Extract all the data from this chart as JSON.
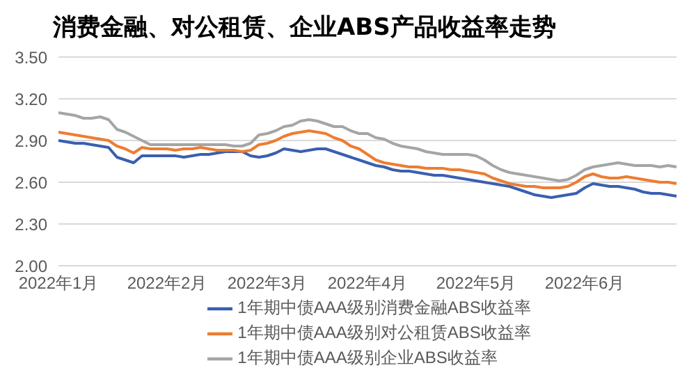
{
  "chart_data": {
    "type": "line",
    "title": "消费金融、对公租赁、企业ABS产品收益率走势",
    "categories": [
      "2022年1月",
      null,
      null,
      null,
      null,
      null,
      null,
      null,
      null,
      null,
      null,
      null,
      null,
      "2022年2月",
      null,
      null,
      null,
      null,
      null,
      null,
      null,
      null,
      null,
      null,
      null,
      "2022年3月",
      null,
      null,
      null,
      null,
      null,
      null,
      null,
      null,
      null,
      null,
      null,
      "2022年4月",
      null,
      null,
      null,
      null,
      null,
      null,
      null,
      null,
      null,
      null,
      null,
      null,
      "2022年5月",
      null,
      null,
      null,
      null,
      null,
      null,
      null,
      null,
      null,
      null,
      null,
      null,
      "2022年6月",
      null,
      null,
      null,
      null,
      null,
      null,
      null,
      null,
      null,
      null,
      null
    ],
    "series": [
      {
        "name": "1年期中债AAA级别消费金融ABS收益率",
        "color": "#3a5fb0",
        "values": [
          2.9,
          2.89,
          2.88,
          2.88,
          2.87,
          2.86,
          2.85,
          2.78,
          2.76,
          2.74,
          2.79,
          2.79,
          2.79,
          2.79,
          2.79,
          2.78,
          2.79,
          2.8,
          2.8,
          2.81,
          2.82,
          2.82,
          2.82,
          2.79,
          2.78,
          2.79,
          2.81,
          2.84,
          2.83,
          2.82,
          2.83,
          2.84,
          2.84,
          2.82,
          2.8,
          2.78,
          2.76,
          2.74,
          2.72,
          2.71,
          2.69,
          2.68,
          2.68,
          2.67,
          2.66,
          2.65,
          2.65,
          2.64,
          2.63,
          2.62,
          2.61,
          2.6,
          2.59,
          2.58,
          2.57,
          2.55,
          2.53,
          2.51,
          2.5,
          2.49,
          2.5,
          2.51,
          2.52,
          2.56,
          2.59,
          2.58,
          2.57,
          2.57,
          2.56,
          2.55,
          2.53,
          2.52,
          2.52,
          2.51,
          2.5
        ]
      },
      {
        "name": "1年期中债AAA级别对公租赁ABS收益率",
        "color": "#ed7d31",
        "values": [
          2.96,
          2.95,
          2.94,
          2.93,
          2.92,
          2.91,
          2.9,
          2.86,
          2.84,
          2.81,
          2.85,
          2.84,
          2.84,
          2.84,
          2.83,
          2.84,
          2.84,
          2.85,
          2.84,
          2.83,
          2.83,
          2.83,
          2.82,
          2.83,
          2.87,
          2.88,
          2.9,
          2.93,
          2.95,
          2.96,
          2.97,
          2.96,
          2.95,
          2.92,
          2.9,
          2.86,
          2.84,
          2.8,
          2.76,
          2.74,
          2.73,
          2.72,
          2.71,
          2.71,
          2.7,
          2.7,
          2.7,
          2.69,
          2.69,
          2.68,
          2.67,
          2.66,
          2.63,
          2.61,
          2.59,
          2.58,
          2.57,
          2.57,
          2.56,
          2.56,
          2.56,
          2.57,
          2.6,
          2.64,
          2.66,
          2.64,
          2.63,
          2.63,
          2.64,
          2.63,
          2.62,
          2.61,
          2.6,
          2.6,
          2.59
        ]
      },
      {
        "name": "1年期中债AAA级别企业ABS收益率",
        "color": "#a5a5a5",
        "values": [
          3.1,
          3.09,
          3.08,
          3.06,
          3.06,
          3.07,
          3.05,
          2.98,
          2.96,
          2.93,
          2.9,
          2.87,
          2.87,
          2.87,
          2.87,
          2.87,
          2.87,
          2.87,
          2.87,
          2.87,
          2.87,
          2.86,
          2.86,
          2.88,
          2.94,
          2.95,
          2.97,
          3.0,
          3.01,
          3.04,
          3.05,
          3.04,
          3.02,
          3.0,
          3.0,
          2.97,
          2.95,
          2.95,
          2.92,
          2.91,
          2.88,
          2.86,
          2.85,
          2.84,
          2.82,
          2.81,
          2.8,
          2.8,
          2.8,
          2.8,
          2.79,
          2.76,
          2.72,
          2.69,
          2.67,
          2.66,
          2.65,
          2.64,
          2.63,
          2.62,
          2.61,
          2.62,
          2.65,
          2.69,
          2.71,
          2.72,
          2.73,
          2.74,
          2.73,
          2.72,
          2.72,
          2.72,
          2.71,
          2.72,
          2.71
        ]
      }
    ],
    "ylim": [
      2.0,
      3.5
    ],
    "yticks": [
      {
        "value": 2.0,
        "label": "2.00"
      },
      {
        "value": 2.3,
        "label": "2.30"
      },
      {
        "value": 2.6,
        "label": "2.60"
      },
      {
        "value": 2.9,
        "label": "2.90"
      },
      {
        "value": 3.2,
        "label": "3.20"
      },
      {
        "value": 3.5,
        "label": "3.50"
      }
    ],
    "grid": "y",
    "legend": "bottom",
    "marker": "none",
    "line_style": "solid"
  }
}
